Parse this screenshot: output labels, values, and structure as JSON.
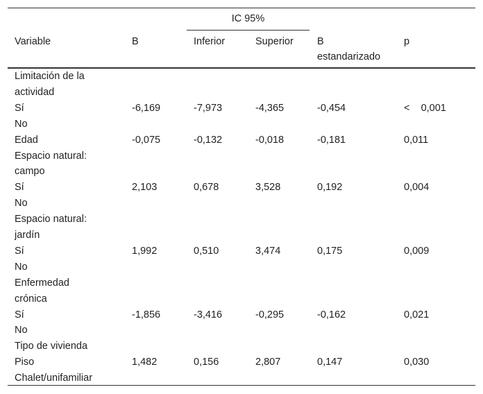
{
  "header": {
    "group_label": "IC 95%",
    "col_variable": "Variable",
    "col_b": "B",
    "col_inferior": "Inferior",
    "col_superior": "Superior",
    "col_b_std_line1": "B",
    "col_b_std_line2": "estandarizado",
    "col_p": "p"
  },
  "rows": [
    {
      "variable": [
        "Limitación de la",
        "actividad"
      ],
      "b": "",
      "inferior": "",
      "superior": "",
      "b_std": "",
      "p": ""
    },
    {
      "variable": [
        "Sí"
      ],
      "b": "-6,169",
      "inferior": "-7,973",
      "superior": "-4,365",
      "b_std": "-0,454",
      "p": "<    0,001"
    },
    {
      "variable": [
        "No"
      ],
      "b": "",
      "inferior": "",
      "superior": "",
      "b_std": "",
      "p": ""
    },
    {
      "variable": [
        "Edad"
      ],
      "b": "-0,075",
      "inferior": "-0,132",
      "superior": "-0,018",
      "b_std": "-0,181",
      "p": "0,011"
    },
    {
      "variable": [
        "Espacio natural:",
        "campo"
      ],
      "b": "",
      "inferior": "",
      "superior": "",
      "b_std": "",
      "p": ""
    },
    {
      "variable": [
        "Sí"
      ],
      "b": "2,103",
      "inferior": "0,678",
      "superior": "3,528",
      "b_std": "0,192",
      "p": "0,004"
    },
    {
      "variable": [
        "No"
      ],
      "b": "",
      "inferior": "",
      "superior": "",
      "b_std": "",
      "p": ""
    },
    {
      "variable": [
        "Espacio natural:",
        "jardín"
      ],
      "b": "",
      "inferior": "",
      "superior": "",
      "b_std": "",
      "p": ""
    },
    {
      "variable": [
        "Sí"
      ],
      "b": "1,992",
      "inferior": "0,510",
      "superior": "3,474",
      "b_std": "0,175",
      "p": "0,009"
    },
    {
      "variable": [
        "No"
      ],
      "b": "",
      "inferior": "",
      "superior": "",
      "b_std": "",
      "p": ""
    },
    {
      "variable": [
        "Enfermedad",
        "crónica"
      ],
      "b": "",
      "inferior": "",
      "superior": "",
      "b_std": "",
      "p": ""
    },
    {
      "variable": [
        "Sí"
      ],
      "b": "-1,856",
      "inferior": "-3,416",
      "superior": "-0,295",
      "b_std": "-0,162",
      "p": "0,021"
    },
    {
      "variable": [
        "No"
      ],
      "b": "",
      "inferior": "",
      "superior": "",
      "b_std": "",
      "p": ""
    },
    {
      "variable": [
        "Tipo de vivienda"
      ],
      "b": "",
      "inferior": "",
      "superior": "",
      "b_std": "",
      "p": ""
    },
    {
      "variable": [
        "Piso"
      ],
      "b": "1,482",
      "inferior": "0,156",
      "superior": "2,807",
      "b_std": "0,147",
      "p": "0,030"
    },
    {
      "variable": [
        "Chalet/unifamiliar"
      ],
      "b": "",
      "inferior": "",
      "superior": "",
      "b_std": "",
      "p": ""
    }
  ]
}
